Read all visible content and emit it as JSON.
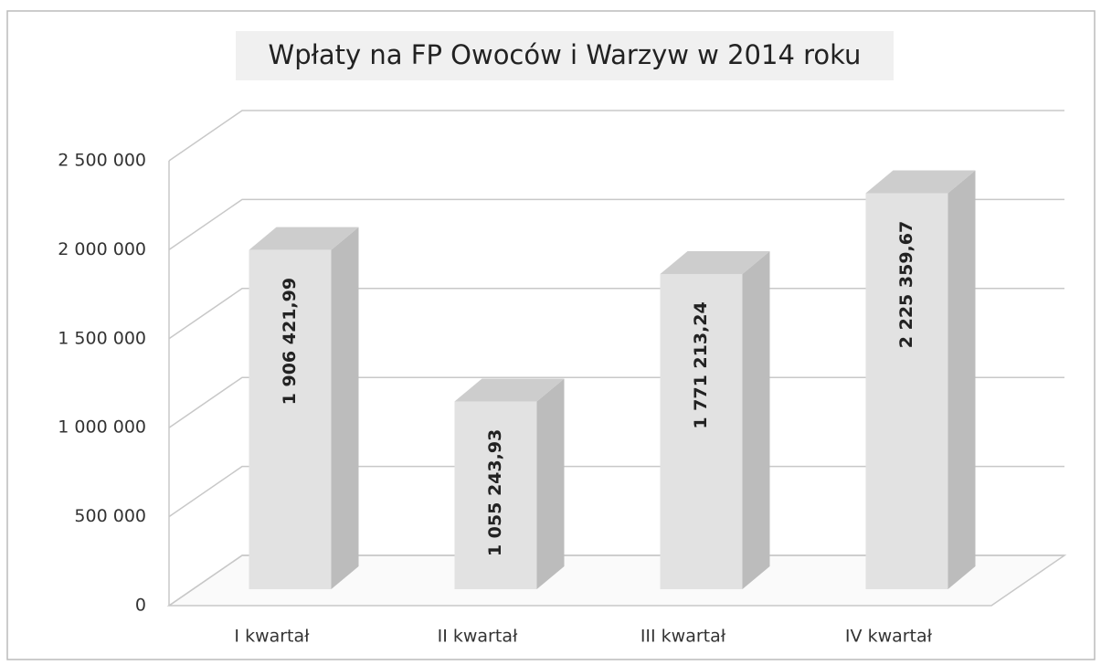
{
  "chart_data": {
    "type": "bar3d",
    "title": "Wpłaty na FP Owoców i Warzyw w 2014 roku",
    "categories": [
      "I kwartał",
      "II kwartał",
      "III kwartał",
      "IV kwartał"
    ],
    "values": [
      1906421.99,
      1055243.93,
      1771213.24,
      2225359.67
    ],
    "value_labels": [
      "1 906 421,99",
      "1 055 243,93",
      "1 771 213,24",
      "2 225 359,67"
    ],
    "color": "#e2e2e2",
    "ylim": [
      0,
      2500000
    ],
    "yticks": [
      0,
      {
        "value": 500000,
        "label": "500 000"
      },
      {
        "value": 1000000,
        "label": "1 000 000"
      },
      {
        "value": 1500000,
        "label": "1 500 000"
      },
      {
        "value": 2000000,
        "label": "2 000 000"
      },
      {
        "value": 2500000,
        "label": "2 500 000"
      }
    ],
    "grid": true
  }
}
